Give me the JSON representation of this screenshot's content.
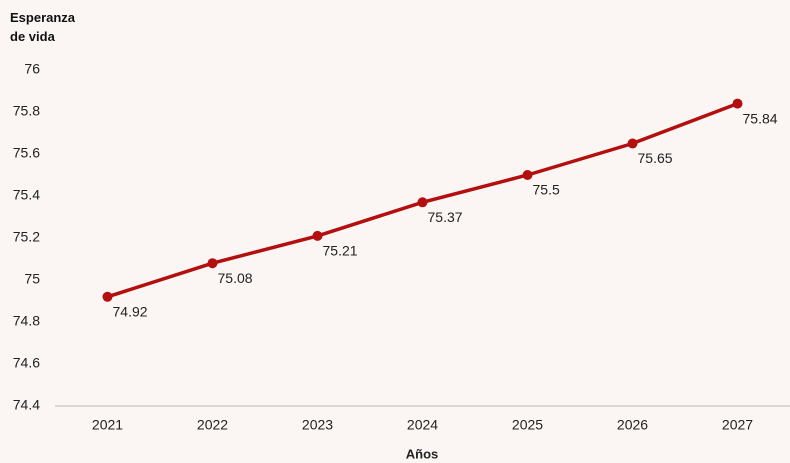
{
  "chart_data": {
    "type": "line",
    "y_label": "Esperanza de vida",
    "x_label": "Años",
    "categories": [
      "2021",
      "2022",
      "2023",
      "2024",
      "2025",
      "2026",
      "2027"
    ],
    "series": [
      {
        "name": "Esperanza de vida",
        "color": "#b30f0f",
        "values": [
          74.92,
          75.08,
          75.21,
          75.37,
          75.5,
          75.65,
          75.84
        ]
      }
    ],
    "ylim": [
      74.4,
      76
    ],
    "yticks": [
      74.4,
      74.6,
      74.8,
      75,
      75.2,
      75.4,
      75.6,
      75.8,
      76
    ],
    "grid": false
  }
}
